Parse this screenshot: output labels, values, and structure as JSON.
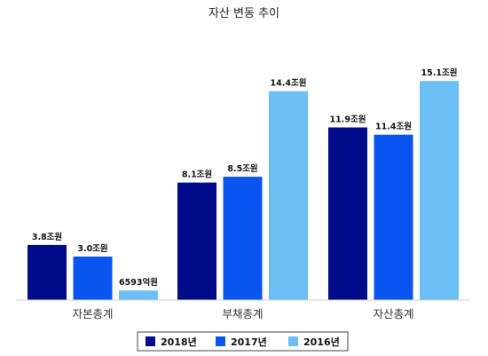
{
  "chart_data": {
    "type": "bar",
    "title": "자산 변동 추이",
    "categories": [
      "자본총계",
      "부채총계",
      "자산총계"
    ],
    "unit": "조원",
    "series": [
      {
        "name": "2018년",
        "color": "#000c8a",
        "values": [
          3.8,
          8.1,
          11.9
        ],
        "labels": [
          "3.8조원",
          "8.1조원",
          "11.9조원"
        ]
      },
      {
        "name": "2017년",
        "color": "#0a55f0",
        "values": [
          3.0,
          8.5,
          11.4
        ],
        "labels": [
          "3.0조원",
          "8.5조원",
          "11.4조원"
        ]
      },
      {
        "name": "2016년",
        "color": "#6cbff5",
        "values": [
          0.6593,
          14.4,
          15.1
        ],
        "labels": [
          "6593억원",
          "14.4조원",
          "15.1조원"
        ]
      }
    ],
    "ylim": [
      0,
      17.5
    ],
    "grid": false,
    "legend_position": "bottom"
  }
}
